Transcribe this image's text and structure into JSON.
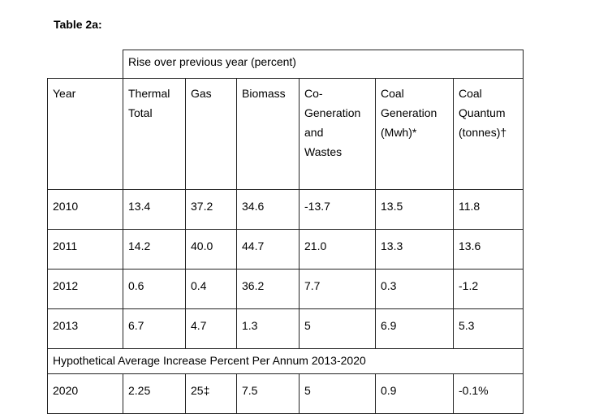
{
  "caption": "Table 2a:",
  "rise_header": "Rise over previous year (percent)",
  "columns": {
    "year": [
      "Year"
    ],
    "thermal": [
      "Thermal",
      "Total"
    ],
    "gas": [
      "Gas"
    ],
    "biomass": [
      "Biomass"
    ],
    "cogen": [
      "Co-",
      "Generation",
      "and",
      "Wastes"
    ],
    "coal_gen": [
      "Coal",
      "Generation",
      "(Mwh)*"
    ],
    "coal_qty": [
      "Coal",
      "Quantum",
      "(tonnes)†"
    ]
  },
  "rows": [
    [
      "2010",
      "13.4",
      "37.2",
      "34.6",
      "-13.7",
      "13.5",
      "11.8"
    ],
    [
      "2011",
      "14.2",
      "40.0",
      "44.7",
      "21.0",
      "13.3",
      "13.6"
    ],
    [
      "2012",
      "0.6",
      "0.4",
      "36.2",
      "7.7",
      "0.3",
      "-1.2"
    ],
    [
      "2013",
      "6.7",
      "4.7",
      "1.3",
      "5",
      "6.9",
      "5.3"
    ]
  ],
  "hypothetical_label": "Hypothetical Average Increase Percent Per Annum  2013-2020",
  "projection_row": [
    "2020",
    "2.25",
    "25‡",
    "7.5",
    "5",
    "0.9",
    "-0.1%"
  ]
}
